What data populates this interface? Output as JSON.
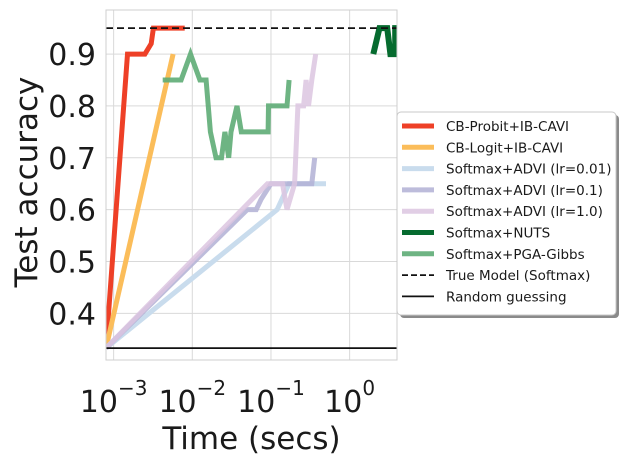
{
  "chart_data": {
    "type": "line",
    "xlabel": "Time (secs)",
    "ylabel": "Test accuracy",
    "xscale": "log",
    "xlim": [
      0.0008,
      4.0
    ],
    "ylim": [
      0.31,
      0.985
    ],
    "x_ticks": [
      {
        "base": "10",
        "exp": "−3",
        "value": 0.001
      },
      {
        "base": "10",
        "exp": "−2",
        "value": 0.01
      },
      {
        "base": "10",
        "exp": "−1",
        "value": 0.1
      },
      {
        "base": "10",
        "exp": "0",
        "value": 1
      }
    ],
    "y_ticks": [
      {
        "label": "0.4",
        "value": 0.4
      },
      {
        "label": "0.5",
        "value": 0.5
      },
      {
        "label": "0.6",
        "value": 0.6
      },
      {
        "label": "0.7",
        "value": 0.7
      },
      {
        "label": "0.8",
        "value": 0.8
      },
      {
        "label": "0.9",
        "value": 0.9
      }
    ],
    "grid": true,
    "legend_position": "center-right, outside",
    "series": [
      {
        "name": "CB-Probit+IB-CAVI",
        "color": "#ee4027",
        "width": 5,
        "opacity": 1,
        "style": "solid",
        "x": [
          0.0008,
          0.0015,
          0.0025,
          0.003,
          0.0032,
          0.0036,
          0.008
        ],
        "y": [
          0.333,
          0.9,
          0.9,
          0.92,
          0.95,
          0.95,
          0.95
        ]
      },
      {
        "name": "CB-Logit+IB-CAVI",
        "color": "#fbbd5a",
        "width": 5,
        "opacity": 1,
        "style": "solid",
        "x": [
          0.0008,
          0.0057
        ],
        "y": [
          0.333,
          0.9
        ]
      },
      {
        "name": "Softmax+ADVI (lr=0.01)",
        "color": "#c9dced",
        "width": 5,
        "opacity": 1,
        "style": "solid",
        "x": [
          0.0008,
          0.12,
          0.17,
          0.5
        ],
        "y": [
          0.333,
          0.6,
          0.65,
          0.65
        ]
      },
      {
        "name": "Softmax+ADVI (lr=0.1)",
        "color": "#b2b0d5",
        "width": 5,
        "opacity": 0.85,
        "style": "solid",
        "x": [
          0.0008,
          0.05,
          0.065,
          0.075,
          0.1,
          0.12,
          0.22,
          0.26,
          0.33,
          0.36
        ],
        "y": [
          0.333,
          0.6,
          0.6,
          0.62,
          0.65,
          0.65,
          0.65,
          0.65,
          0.65,
          0.7
        ]
      },
      {
        "name": "Softmax+ADVI (lr=1.0)",
        "color": "#dcc5e0",
        "width": 5,
        "opacity": 0.85,
        "style": "solid",
        "x": [
          0.0008,
          0.09,
          0.14,
          0.16,
          0.2,
          0.22,
          0.26,
          0.28,
          0.3,
          0.33,
          0.37
        ],
        "y": [
          0.333,
          0.65,
          0.65,
          0.6,
          0.65,
          0.8,
          0.8,
          0.85,
          0.8,
          0.85,
          0.9
        ]
      },
      {
        "name": "Softmax+NUTS",
        "color": "#066b2f",
        "width": 6,
        "opacity": 1,
        "style": "solid",
        "x": [
          2.0,
          2.4,
          2.55,
          3.0,
          3.3,
          3.8,
          3.8,
          4.0
        ],
        "y": [
          0.9,
          0.95,
          0.95,
          0.95,
          0.9,
          0.9,
          0.95,
          0.95
        ]
      },
      {
        "name": "Softmax+PGA-Gibbs",
        "color": "#5eac75",
        "width": 5,
        "opacity": 0.9,
        "style": "solid",
        "x": [
          0.0042,
          0.0062,
          0.0072,
          0.0095,
          0.0125,
          0.015,
          0.017,
          0.02,
          0.0235,
          0.026,
          0.029,
          0.031,
          0.037,
          0.042,
          0.05,
          0.092,
          0.093,
          0.16,
          0.17
        ],
        "y": [
          0.85,
          0.85,
          0.85,
          0.9,
          0.85,
          0.85,
          0.75,
          0.7,
          0.7,
          0.75,
          0.7,
          0.75,
          0.8,
          0.75,
          0.75,
          0.75,
          0.8,
          0.8,
          0.85
        ]
      },
      {
        "name": "True Model (Softmax)",
        "color": "#111111",
        "width": 1.8,
        "opacity": 1,
        "style": "dashed",
        "x": [
          0.0008,
          4.0
        ],
        "y": [
          0.95,
          0.95
        ]
      },
      {
        "name": "Random guessing",
        "color": "#111111",
        "width": 1.8,
        "opacity": 1,
        "style": "solid",
        "x": [
          0.0008,
          4.0
        ],
        "y": [
          0.333,
          0.333
        ]
      }
    ]
  }
}
